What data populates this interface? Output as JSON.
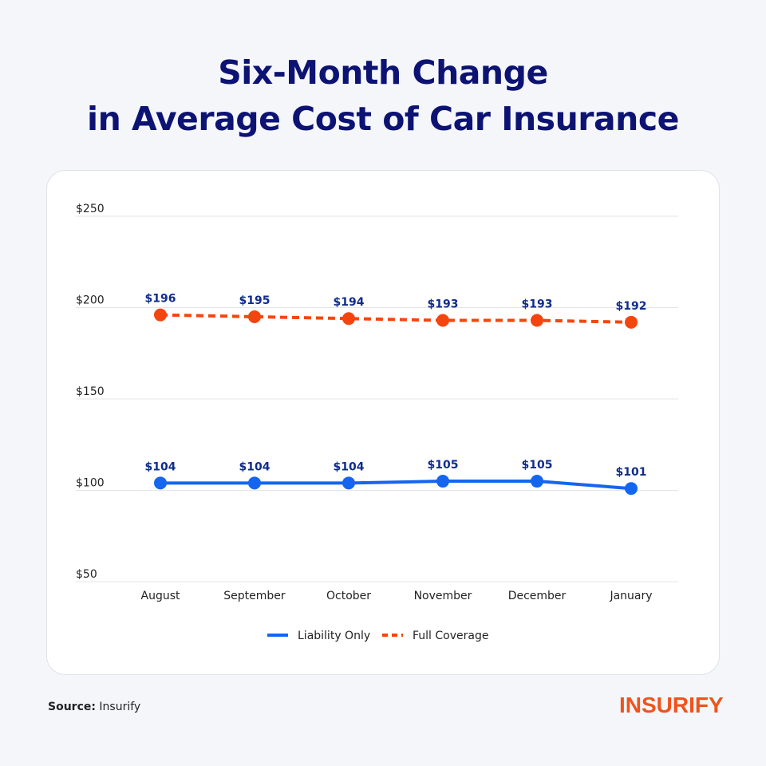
{
  "title_line1": "Six-Month Change",
  "title_line2": "in Average Cost of Car Insurance",
  "source_label": "Source:",
  "source_value": "Insurify",
  "logo_text": "INSURIFY",
  "chart_data": {
    "type": "line",
    "categories": [
      "August",
      "September",
      "October",
      "November",
      "December",
      "January"
    ],
    "ylim": [
      50,
      250
    ],
    "yticks": [
      50,
      100,
      150,
      200,
      250
    ],
    "ytick_labels": [
      "$50",
      "$100",
      "$150",
      "$200",
      "$250"
    ],
    "grid": true,
    "legend_placement": "bottom",
    "series": [
      {
        "name": "Liability Only",
        "values": [
          104,
          104,
          104,
          105,
          105,
          101
        ],
        "labels": [
          "$104",
          "$104",
          "$104",
          "$105",
          "$105",
          "$101"
        ],
        "color": "#1466f0",
        "style": "solid"
      },
      {
        "name": "Full Coverage",
        "values": [
          196,
          195,
          194,
          193,
          193,
          192
        ],
        "labels": [
          "$196",
          "$195",
          "$194",
          "$193",
          "$193",
          "$192"
        ],
        "color": "#f5450f",
        "style": "dashed"
      }
    ],
    "label_color": "#0f2c8c"
  }
}
